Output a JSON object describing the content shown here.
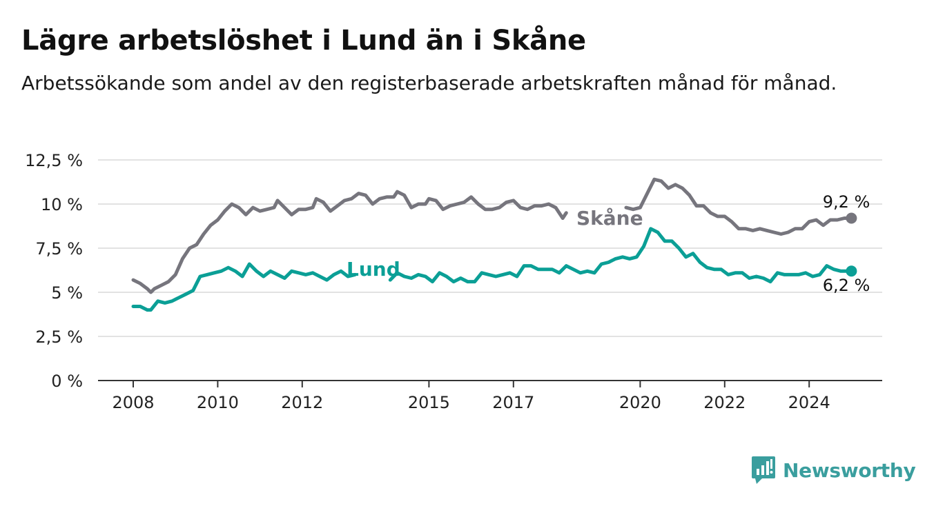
{
  "header": {
    "title": "Lägre arbetslöshet i Lund än i Skåne",
    "subtitle": "Arbetssökande som andel av den registerbaserade arbetskraften månad för månad."
  },
  "brand": {
    "name": "Newsworthy",
    "icon": "newsworthy-logo-icon",
    "color": "#3a9e9e"
  },
  "chart_data": {
    "type": "line",
    "title": "Lägre arbetslöshet i Lund än i Skåne",
    "subtitle": "Arbetssökande som andel av den registerbaserade arbetskraften månad för månad.",
    "xlabel": "",
    "ylabel": "",
    "x_range": [
      "2008-01",
      "2025-03"
    ],
    "ylim": [
      0,
      12.5
    ],
    "y_ticks": [
      0,
      2.5,
      5,
      7.5,
      10,
      12.5
    ],
    "y_tick_labels": [
      "0 %",
      "2,5 %",
      "5 %",
      "7,5 %",
      "10 %",
      "12,5 %"
    ],
    "x_ticks": [
      "2008-01",
      "2010-01",
      "2012-01",
      "2015-01",
      "2017-01",
      "2020-01",
      "2022-01",
      "2024-01"
    ],
    "x_tick_labels": [
      "2008",
      "2010",
      "2012",
      "2015",
      "2017",
      "2020",
      "2022",
      "2024"
    ],
    "grid": "horizontal",
    "legend": "inline labels",
    "series": [
      {
        "name": "Skåne",
        "color": "#76757d",
        "end_label": "9,2 %",
        "points": [
          [
            "2008-01",
            5.7
          ],
          [
            "2008-03",
            5.5
          ],
          [
            "2008-05",
            5.2
          ],
          [
            "2008-06",
            5.0
          ],
          [
            "2008-07",
            5.2
          ],
          [
            "2008-09",
            5.4
          ],
          [
            "2008-11",
            5.6
          ],
          [
            "2009-01",
            6.0
          ],
          [
            "2009-03",
            6.9
          ],
          [
            "2009-05",
            7.5
          ],
          [
            "2009-07",
            7.7
          ],
          [
            "2009-09",
            8.3
          ],
          [
            "2009-11",
            8.8
          ],
          [
            "2010-01",
            9.1
          ],
          [
            "2010-03",
            9.6
          ],
          [
            "2010-05",
            10.0
          ],
          [
            "2010-07",
            9.8
          ],
          [
            "2010-09",
            9.4
          ],
          [
            "2010-11",
            9.8
          ],
          [
            "2011-01",
            9.6
          ],
          [
            "2011-03",
            9.7
          ],
          [
            "2011-05",
            9.8
          ],
          [
            "2011-06",
            10.2
          ],
          [
            "2011-08",
            9.8
          ],
          [
            "2011-10",
            9.4
          ],
          [
            "2011-12",
            9.7
          ],
          [
            "2012-02",
            9.7
          ],
          [
            "2012-04",
            9.8
          ],
          [
            "2012-05",
            10.3
          ],
          [
            "2012-07",
            10.1
          ],
          [
            "2012-09",
            9.6
          ],
          [
            "2012-11",
            9.9
          ],
          [
            "2013-01",
            10.2
          ],
          [
            "2013-03",
            10.3
          ],
          [
            "2013-05",
            10.6
          ],
          [
            "2013-07",
            10.5
          ],
          [
            "2013-09",
            10.0
          ],
          [
            "2013-11",
            10.3
          ],
          [
            "2014-01",
            10.4
          ],
          [
            "2014-03",
            10.4
          ],
          [
            "2014-04",
            10.7
          ],
          [
            "2014-06",
            10.5
          ],
          [
            "2014-08",
            9.8
          ],
          [
            "2014-10",
            10.0
          ],
          [
            "2014-12",
            10.0
          ],
          [
            "2015-01",
            10.3
          ],
          [
            "2015-03",
            10.2
          ],
          [
            "2015-05",
            9.7
          ],
          [
            "2015-07",
            9.9
          ],
          [
            "2015-09",
            10.0
          ],
          [
            "2015-11",
            10.1
          ],
          [
            "2016-01",
            10.4
          ],
          [
            "2016-03",
            10.0
          ],
          [
            "2016-05",
            9.7
          ],
          [
            "2016-07",
            9.7
          ],
          [
            "2016-09",
            9.8
          ],
          [
            "2016-11",
            10.1
          ],
          [
            "2017-01",
            10.2
          ],
          [
            "2017-03",
            9.8
          ],
          [
            "2017-05",
            9.7
          ],
          [
            "2017-07",
            9.9
          ],
          [
            "2017-09",
            9.9
          ],
          [
            "2017-11",
            10.0
          ],
          [
            "2018-01",
            9.8
          ],
          [
            "2018-03",
            9.2
          ],
          [
            "2018-04",
            9.5
          ]
        ],
        "points_after_label": [
          [
            "2019-09",
            9.8
          ],
          [
            "2019-11",
            9.7
          ],
          [
            "2020-01",
            9.8
          ],
          [
            "2020-03",
            10.6
          ],
          [
            "2020-05",
            11.4
          ],
          [
            "2020-07",
            11.3
          ],
          [
            "2020-09",
            10.9
          ],
          [
            "2020-11",
            11.1
          ],
          [
            "2021-01",
            10.9
          ],
          [
            "2021-03",
            10.5
          ],
          [
            "2021-05",
            9.9
          ],
          [
            "2021-07",
            9.9
          ],
          [
            "2021-09",
            9.5
          ],
          [
            "2021-11",
            9.3
          ],
          [
            "2022-01",
            9.3
          ],
          [
            "2022-03",
            9.0
          ],
          [
            "2022-05",
            8.6
          ],
          [
            "2022-07",
            8.6
          ],
          [
            "2022-09",
            8.5
          ],
          [
            "2022-11",
            8.6
          ],
          [
            "2023-01",
            8.5
          ],
          [
            "2023-03",
            8.4
          ],
          [
            "2023-05",
            8.3
          ],
          [
            "2023-07",
            8.4
          ],
          [
            "2023-09",
            8.6
          ],
          [
            "2023-11",
            8.6
          ],
          [
            "2024-01",
            9.0
          ],
          [
            "2024-03",
            9.1
          ],
          [
            "2024-05",
            8.8
          ],
          [
            "2024-07",
            9.1
          ],
          [
            "2024-09",
            9.1
          ],
          [
            "2024-11",
            9.2
          ],
          [
            "2025-01",
            9.2
          ]
        ]
      },
      {
        "name": "Lund",
        "color": "#0b9f96",
        "end_label": "6,2 %",
        "points": [
          [
            "2008-01",
            4.2
          ],
          [
            "2008-03",
            4.2
          ],
          [
            "2008-05",
            4.0
          ],
          [
            "2008-06",
            4.0
          ],
          [
            "2008-08",
            4.5
          ],
          [
            "2008-10",
            4.4
          ],
          [
            "2008-12",
            4.5
          ],
          [
            "2009-02",
            4.7
          ],
          [
            "2009-04",
            4.9
          ],
          [
            "2009-06",
            5.1
          ],
          [
            "2009-08",
            5.9
          ],
          [
            "2009-10",
            6.0
          ],
          [
            "2009-12",
            6.1
          ],
          [
            "2010-02",
            6.2
          ],
          [
            "2010-04",
            6.4
          ],
          [
            "2010-06",
            6.2
          ],
          [
            "2010-08",
            5.9
          ],
          [
            "2010-10",
            6.6
          ],
          [
            "2010-12",
            6.2
          ],
          [
            "2011-02",
            5.9
          ],
          [
            "2011-04",
            6.2
          ],
          [
            "2011-06",
            6.0
          ],
          [
            "2011-08",
            5.8
          ],
          [
            "2011-10",
            6.2
          ],
          [
            "2011-12",
            6.1
          ],
          [
            "2012-02",
            6.0
          ],
          [
            "2012-04",
            6.1
          ],
          [
            "2012-06",
            5.9
          ],
          [
            "2012-08",
            5.7
          ],
          [
            "2012-10",
            6.0
          ],
          [
            "2012-12",
            6.2
          ],
          [
            "2013-02",
            5.9
          ],
          [
            "2013-04",
            6.0
          ]
        ],
        "points_after_label": [
          [
            "2014-02",
            5.7
          ],
          [
            "2014-04",
            6.1
          ],
          [
            "2014-06",
            5.9
          ],
          [
            "2014-08",
            5.8
          ],
          [
            "2014-10",
            6.0
          ],
          [
            "2014-12",
            5.9
          ],
          [
            "2015-02",
            5.6
          ],
          [
            "2015-04",
            6.1
          ],
          [
            "2015-06",
            5.9
          ],
          [
            "2015-08",
            5.6
          ],
          [
            "2015-10",
            5.8
          ],
          [
            "2015-12",
            5.6
          ],
          [
            "2016-02",
            5.6
          ],
          [
            "2016-04",
            6.1
          ],
          [
            "2016-06",
            6.0
          ],
          [
            "2016-08",
            5.9
          ],
          [
            "2016-10",
            6.0
          ],
          [
            "2016-12",
            6.1
          ],
          [
            "2017-02",
            5.9
          ],
          [
            "2017-04",
            6.5
          ],
          [
            "2017-06",
            6.5
          ],
          [
            "2017-08",
            6.3
          ],
          [
            "2017-10",
            6.3
          ],
          [
            "2017-12",
            6.3
          ],
          [
            "2018-02",
            6.1
          ],
          [
            "2018-04",
            6.5
          ],
          [
            "2018-06",
            6.3
          ],
          [
            "2018-08",
            6.1
          ],
          [
            "2018-10",
            6.2
          ],
          [
            "2018-12",
            6.1
          ],
          [
            "2019-02",
            6.6
          ],
          [
            "2019-04",
            6.7
          ],
          [
            "2019-06",
            6.9
          ],
          [
            "2019-08",
            7.0
          ],
          [
            "2019-10",
            6.9
          ],
          [
            "2019-12",
            7.0
          ],
          [
            "2020-02",
            7.6
          ],
          [
            "2020-04",
            8.6
          ],
          [
            "2020-06",
            8.4
          ],
          [
            "2020-08",
            7.9
          ],
          [
            "2020-10",
            7.9
          ],
          [
            "2020-12",
            7.5
          ],
          [
            "2021-02",
            7.0
          ],
          [
            "2021-04",
            7.2
          ],
          [
            "2021-06",
            6.7
          ],
          [
            "2021-08",
            6.4
          ],
          [
            "2021-10",
            6.3
          ],
          [
            "2021-12",
            6.3
          ],
          [
            "2022-02",
            6.0
          ],
          [
            "2022-04",
            6.1
          ],
          [
            "2022-06",
            6.1
          ],
          [
            "2022-08",
            5.8
          ],
          [
            "2022-10",
            5.9
          ],
          [
            "2022-12",
            5.8
          ],
          [
            "2023-02",
            5.6
          ],
          [
            "2023-04",
            6.1
          ],
          [
            "2023-06",
            6.0
          ],
          [
            "2023-08",
            6.0
          ],
          [
            "2023-10",
            6.0
          ],
          [
            "2023-12",
            6.1
          ],
          [
            "2024-02",
            5.9
          ],
          [
            "2024-04",
            6.0
          ],
          [
            "2024-06",
            6.5
          ],
          [
            "2024-08",
            6.3
          ],
          [
            "2024-10",
            6.2
          ],
          [
            "2024-12",
            6.2
          ],
          [
            "2025-01",
            6.2
          ]
        ]
      }
    ]
  }
}
